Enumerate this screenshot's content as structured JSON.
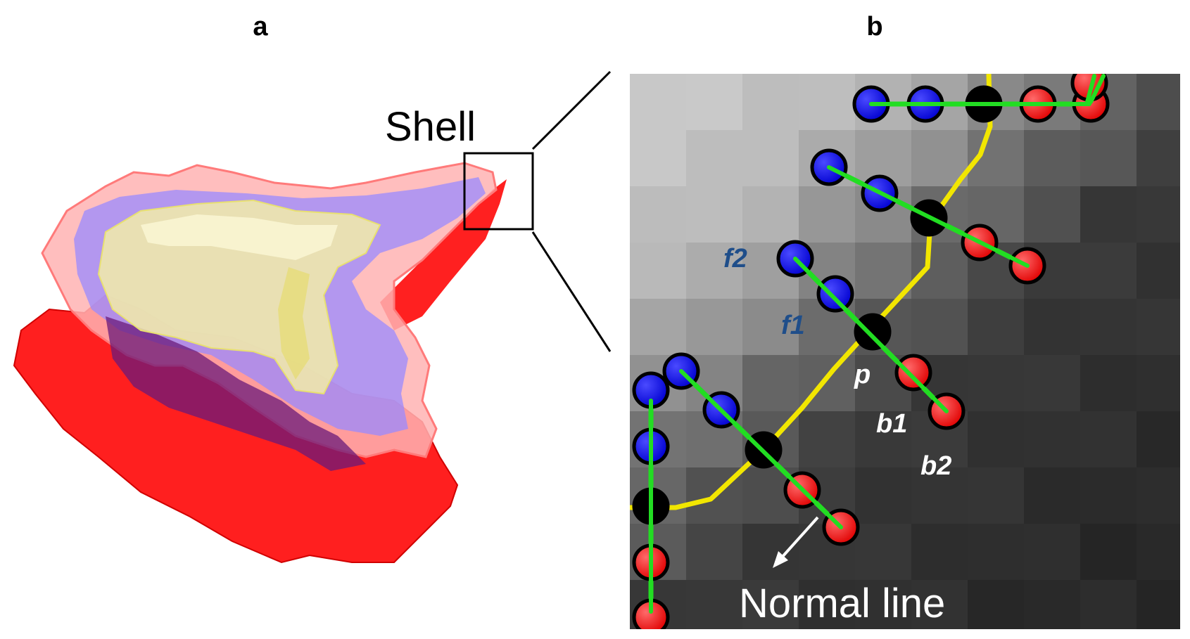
{
  "panels": {
    "a": {
      "label": "a",
      "callout": "Shell"
    },
    "b": {
      "label": "b",
      "point_labels": {
        "f2": "f2",
        "f1": "f1",
        "p": "p",
        "b1": "b1",
        "b2": "b2"
      },
      "callout": "Normal line"
    }
  },
  "colors": {
    "foreground_point": "#1a1aff",
    "background_point": "#ff1a1a",
    "boundary_point": "#000000",
    "normal_line": "#22dd22",
    "boundary_curve": "#f2e600",
    "foreground_label": "#1f4e8a",
    "background_label": "#ffffff",
    "shell": "#ff2a2a",
    "inner_layer": "#8a7aff",
    "core": "#f2eda8"
  }
}
